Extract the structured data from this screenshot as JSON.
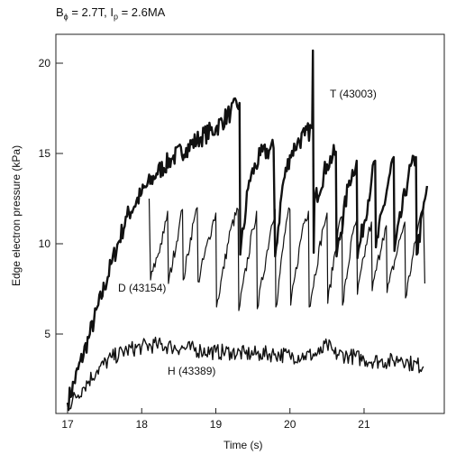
{
  "chart_data": {
    "type": "line",
    "title": {
      "b_part": "B",
      "b_sub": "ϕ",
      "b_value": " = 2.7T, I",
      "i_sub": "p",
      "i_value": " = 2.6MA"
    },
    "xlabel": "Time (s)",
    "ylabel": "Edge electron pressure (kPa)",
    "xlim": [
      17,
      21.9
    ],
    "ylim": [
      0,
      21
    ],
    "x_ticks": [
      17,
      18,
      19,
      20,
      21
    ],
    "y_ticks": [
      5,
      10,
      15,
      20
    ],
    "grid": false,
    "series": [
      {
        "name": "T (43003)",
        "x": [
          17.0,
          17.3,
          17.6,
          17.8,
          18.0,
          18.2,
          18.4,
          18.6,
          18.8,
          19.0,
          19.2,
          19.32,
          19.33,
          19.45,
          19.6,
          19.78,
          19.8,
          19.9,
          20.0,
          20.1,
          20.2,
          20.3,
          20.31,
          20.32,
          20.33,
          20.5,
          20.62,
          20.63,
          20.8,
          20.9,
          20.91,
          21.1,
          21.15,
          21.16,
          21.35,
          21.4,
          21.41,
          21.6,
          21.7,
          21.71,
          21.85
        ],
        "values": [
          1.2,
          5.0,
          9.0,
          11.5,
          12.8,
          13.9,
          14.7,
          15.3,
          15.9,
          16.4,
          17.3,
          17.8,
          9.4,
          13.5,
          14.9,
          15.3,
          9.3,
          13.2,
          14.9,
          15.6,
          16.0,
          16.4,
          20.7,
          9.5,
          12.3,
          14.4,
          15.1,
          9.3,
          13.5,
          14.6,
          9.2,
          13.5,
          14.6,
          9.8,
          13.9,
          14.8,
          9.6,
          13.8,
          14.8,
          9.4,
          13.2
        ]
      },
      {
        "name": "D (43154)",
        "x": [
          18.1,
          18.12,
          18.3,
          18.35,
          18.36,
          18.5,
          18.55,
          18.56,
          18.7,
          18.75,
          18.76,
          18.95,
          19.0,
          19.01,
          19.2,
          19.3,
          19.31,
          19.5,
          19.55,
          19.56,
          19.75,
          19.8,
          19.81,
          19.95,
          20.0,
          20.01,
          20.18,
          20.25,
          20.26,
          20.45,
          20.5,
          20.51,
          20.65,
          20.7,
          20.71,
          20.85,
          20.9,
          20.91,
          21.05,
          21.1,
          21.11,
          21.25,
          21.3,
          21.31,
          21.5,
          21.55,
          21.56,
          21.75,
          21.8,
          21.82
        ],
        "values": [
          12.5,
          8.0,
          10.6,
          11.8,
          7.8,
          10.8,
          11.9,
          8.0,
          11.2,
          12.0,
          7.9,
          11.0,
          11.7,
          6.5,
          10.8,
          11.9,
          6.3,
          10.8,
          11.8,
          6.4,
          11.0,
          11.9,
          6.5,
          11.2,
          11.9,
          6.6,
          11.1,
          11.8,
          6.5,
          10.9,
          11.7,
          6.7,
          10.8,
          11.5,
          6.6,
          10.6,
          11.3,
          7.2,
          10.4,
          11.2,
          7.4,
          10.3,
          11.0,
          7.3,
          10.5,
          11.2,
          7.0,
          11.4,
          12.0,
          7.8
        ]
      },
      {
        "name": "H (43389)",
        "x": [
          17.0,
          17.2,
          17.4,
          17.6,
          17.8,
          18.0,
          18.2,
          18.4,
          18.6,
          18.8,
          19.0,
          19.2,
          19.4,
          19.6,
          19.8,
          20.0,
          20.2,
          20.4,
          20.5,
          20.6,
          20.8,
          21.0,
          21.2,
          21.4,
          21.5,
          21.6,
          21.8
        ],
        "values": [
          1.0,
          2.0,
          3.0,
          3.7,
          4.1,
          4.3,
          4.4,
          4.3,
          4.2,
          4.1,
          4.0,
          4.0,
          3.9,
          3.9,
          3.9,
          3.8,
          3.8,
          3.9,
          4.4,
          3.9,
          3.8,
          3.6,
          3.5,
          3.5,
          3.7,
          3.4,
          3.2
        ]
      }
    ]
  },
  "annotations": {
    "t_label": "T (43003)",
    "d_label": "D (43154)",
    "h_label": "H (43389)"
  }
}
